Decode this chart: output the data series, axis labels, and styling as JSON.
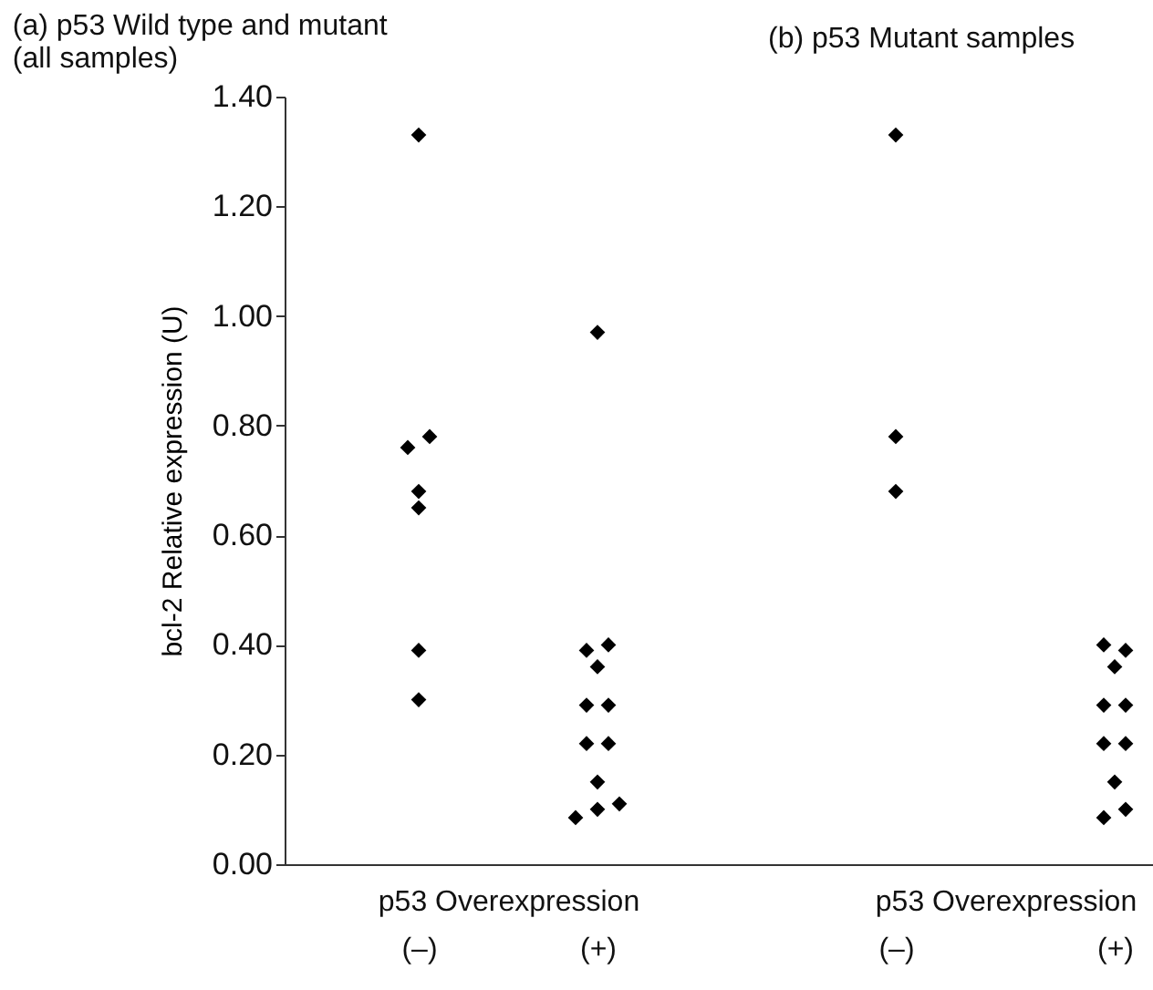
{
  "chart_data": [
    {
      "type": "scatter",
      "title": "(a)  p53 Wild type and mutant",
      "subtitle": "(all samples)",
      "xlabel": "p53 Overexpression",
      "ylabel": "bcl-2 Relative expression (U)",
      "categories": [
        "(–)",
        "(+)"
      ],
      "series": [
        {
          "color": "#000000",
          "x": [
            "(–)",
            "(–)",
            "(–)",
            "(–)",
            "(–)",
            "(–)",
            "(–)",
            "(+)",
            "(+)",
            "(+)",
            "(+)",
            "(+)",
            "(+)",
            "(+)",
            "(+)",
            "(+)",
            "(+)",
            "(+)",
            "(+)"
          ],
          "values": [
            1.33,
            0.76,
            0.78,
            0.65,
            0.68,
            0.39,
            0.3,
            0.97,
            0.39,
            0.4,
            0.36,
            0.29,
            0.29,
            0.22,
            0.22,
            0.15,
            0.085,
            0.1,
            0.11
          ]
        }
      ],
      "ylim": [
        0,
        1.4
      ],
      "yticks": [
        {
          "value": 0,
          "label": "0.00"
        },
        {
          "value": 0.2,
          "label": "0.20"
        },
        {
          "value": 0.4,
          "label": "0.40"
        },
        {
          "value": 0.6,
          "label": "0.60"
        },
        {
          "value": 0.8,
          "label": "0.80"
        },
        {
          "value": 1,
          "label": "1.00"
        },
        {
          "value": 1.2,
          "label": "1.20"
        },
        {
          "value": 1.4,
          "label": "1.40"
        }
      ],
      "grid": false,
      "legend": false,
      "marker": "diamond"
    },
    {
      "type": "scatter",
      "title": "(b)  p53  Mutant samples",
      "xlabel": "p53 Overexpression",
      "categories": [
        "(–)",
        "(+)"
      ],
      "series": [
        {
          "color": "#000000",
          "x": [
            "(–)",
            "(–)",
            "(–)",
            "(+)",
            "(+)",
            "(+)",
            "(+)",
            "(+)",
            "(+)",
            "(+)",
            "(+)",
            "(+)",
            "(+)"
          ],
          "values": [
            1.33,
            0.78,
            0.68,
            0.4,
            0.39,
            0.36,
            0.29,
            0.29,
            0.22,
            0.22,
            0.15,
            0.085,
            0.1
          ]
        }
      ],
      "ylim": [
        0,
        1.4
      ],
      "tick_labels": "x",
      "grid": false,
      "legend": false,
      "marker": "diamond"
    }
  ]
}
